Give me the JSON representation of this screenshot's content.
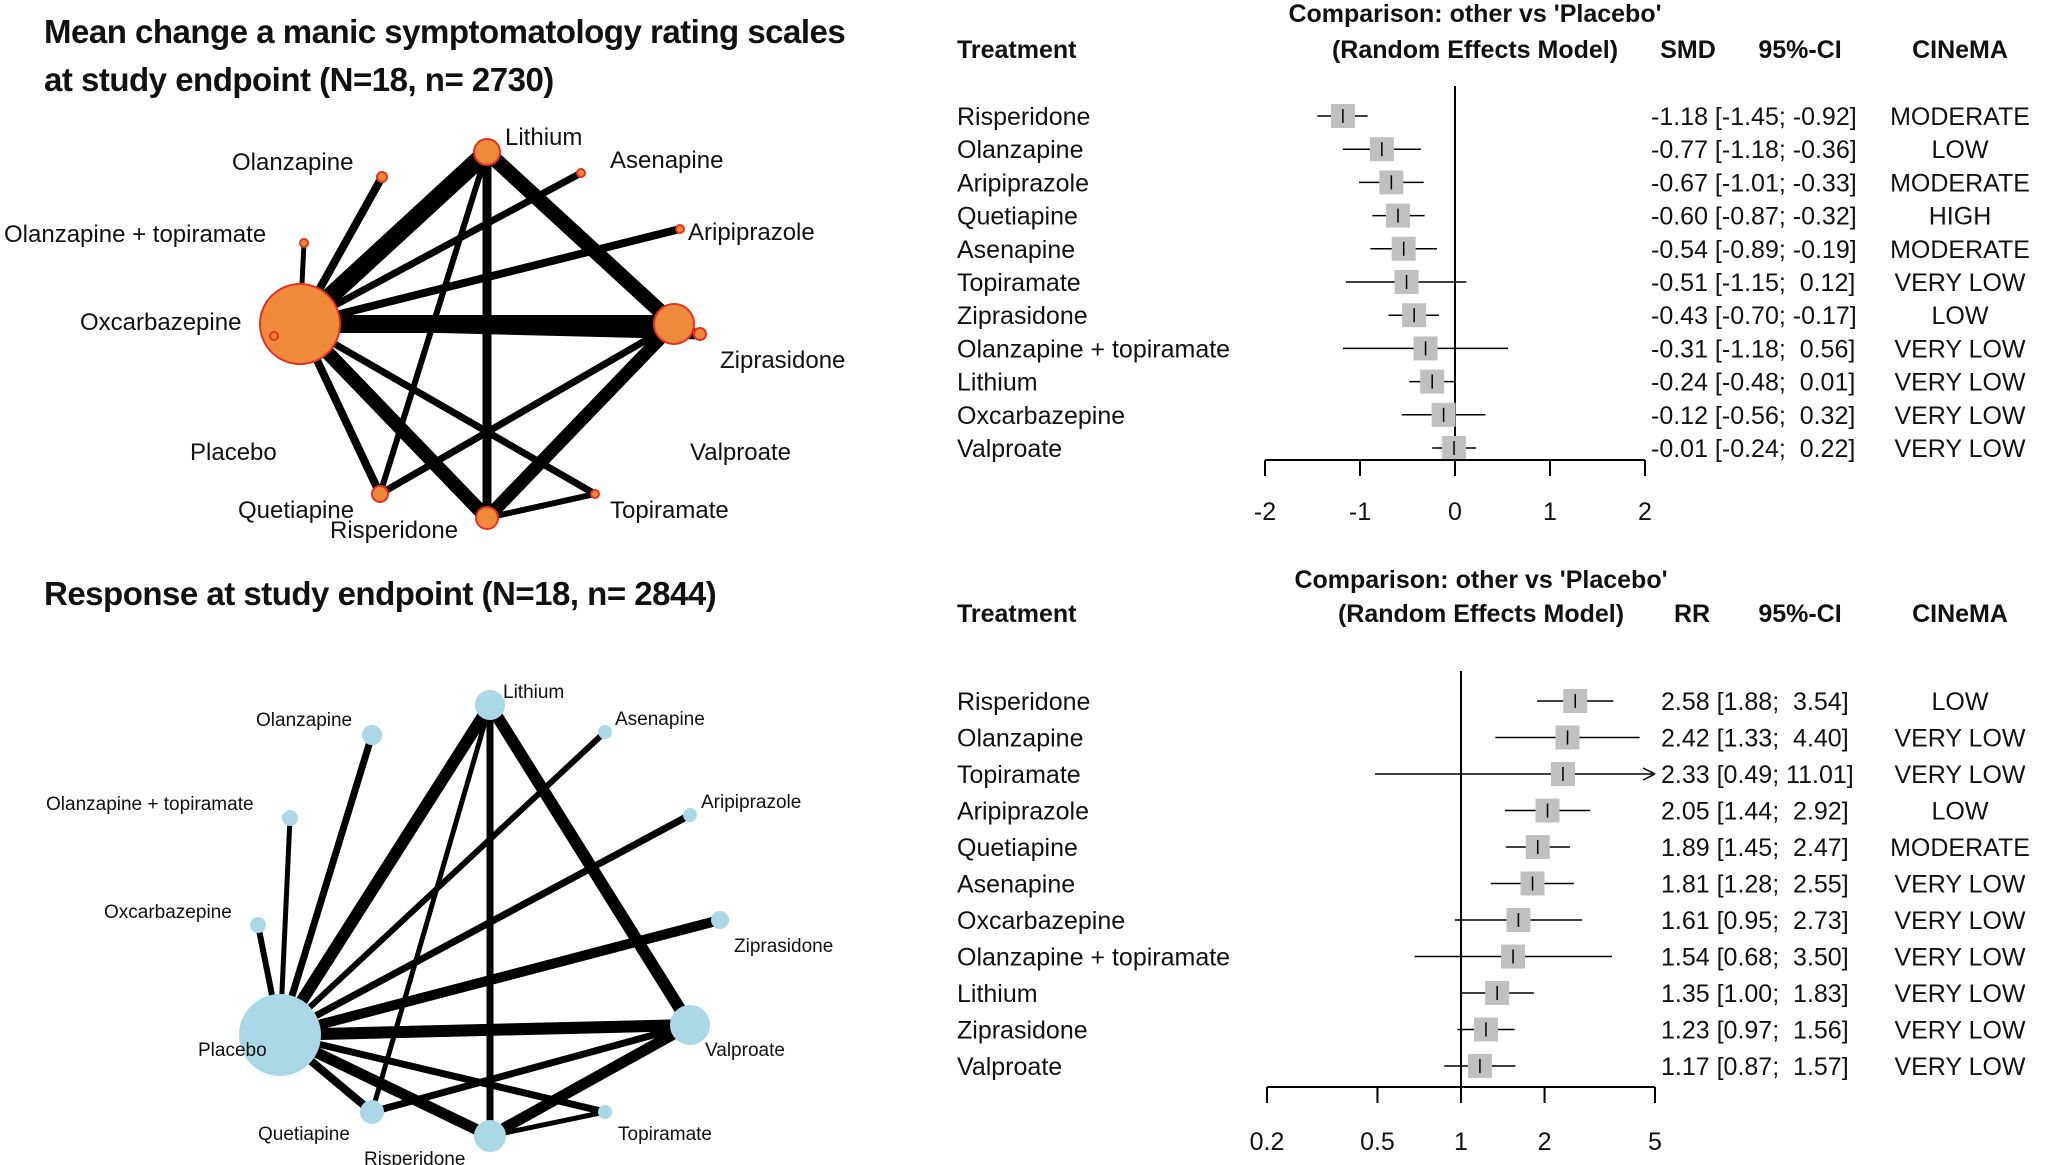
{
  "panels": [
    {
      "title_line1": "Mean change a manic symptomatology rating scales",
      "title_line2": "at study endpoint (N=18, n= 2730)",
      "network": {
        "node_fill": "#ef8a3a",
        "node_stroke": "#e8301e",
        "nodes": [
          {
            "id": "placebo",
            "label": "Placebo"
          },
          {
            "id": "lithium",
            "label": "Lithium"
          },
          {
            "id": "valproate",
            "label": "Valproate"
          },
          {
            "id": "risperidone",
            "label": "Risperidone"
          },
          {
            "id": "quetiapine",
            "label": "Quetiapine"
          },
          {
            "id": "topiramate",
            "label": "Topiramate"
          },
          {
            "id": "ziprasidone",
            "label": "Ziprasidone"
          },
          {
            "id": "aripiprazole",
            "label": "Aripiprazole"
          },
          {
            "id": "asenapine",
            "label": "Asenapine"
          },
          {
            "id": "olanzapine",
            "label": "Olanzapine"
          },
          {
            "id": "olz_top",
            "label": "Olanzapine + topiramate"
          },
          {
            "id": "oxcarbazepine",
            "label": "Oxcarbazepine"
          }
        ]
      },
      "chart_data": {
        "type": "forest",
        "header": {
          "subtitle_line1": "Comparison: other vs 'Placebo'",
          "subtitle_line2": "(Random Effects Model)",
          "treatment": "Treatment",
          "measure": "SMD",
          "ci": "95%-CI",
          "cinema": "CINeMA"
        },
        "scale": "linear",
        "xlim": [
          -2,
          2
        ],
        "ticks": [
          -2,
          -1,
          0,
          1,
          2
        ],
        "tick_labels": [
          "-2",
          "-1",
          "0",
          "1",
          "2"
        ],
        "null_value": 0,
        "rows": [
          {
            "treatment": "Risperidone",
            "est": -1.18,
            "lo": -1.45,
            "hi": -0.92,
            "text": "-1.18 [-1.45; -0.92]",
            "cinema": "MODERATE"
          },
          {
            "treatment": "Olanzapine",
            "est": -0.77,
            "lo": -1.18,
            "hi": -0.36,
            "text": "-0.77 [-1.18; -0.36]",
            "cinema": "LOW"
          },
          {
            "treatment": "Aripiprazole",
            "est": -0.67,
            "lo": -1.01,
            "hi": -0.33,
            "text": "-0.67 [-1.01; -0.33]",
            "cinema": "MODERATE"
          },
          {
            "treatment": "Quetiapine",
            "est": -0.6,
            "lo": -0.87,
            "hi": -0.32,
            "text": "-0.60 [-0.87; -0.32]",
            "cinema": "HIGH"
          },
          {
            "treatment": "Asenapine",
            "est": -0.54,
            "lo": -0.89,
            "hi": -0.19,
            "text": "-0.54 [-0.89; -0.19]",
            "cinema": "MODERATE"
          },
          {
            "treatment": "Topiramate",
            "est": -0.51,
            "lo": -1.15,
            "hi": 0.12,
            "text": "-0.51 [-1.15;  0.12]",
            "cinema": "VERY LOW"
          },
          {
            "treatment": "Ziprasidone",
            "est": -0.43,
            "lo": -0.7,
            "hi": -0.17,
            "text": "-0.43 [-0.70; -0.17]",
            "cinema": "LOW"
          },
          {
            "treatment": "Olanzapine + topiramate",
            "est": -0.31,
            "lo": -1.18,
            "hi": 0.56,
            "text": "-0.31 [-1.18;  0.56]",
            "cinema": "VERY LOW"
          },
          {
            "treatment": "Lithium",
            "est": -0.24,
            "lo": -0.48,
            "hi": 0.01,
            "text": "-0.24 [-0.48;  0.01]",
            "cinema": "VERY LOW"
          },
          {
            "treatment": "Oxcarbazepine",
            "est": -0.12,
            "lo": -0.56,
            "hi": 0.32,
            "text": "-0.12 [-0.56;  0.32]",
            "cinema": "VERY LOW"
          },
          {
            "treatment": "Valproate",
            "est": -0.01,
            "lo": -0.24,
            "hi": 0.22,
            "text": "-0.01 [-0.24;  0.22]",
            "cinema": "VERY LOW"
          }
        ]
      }
    },
    {
      "title_line1": "Response at study endpoint (N=18, n= 2844)",
      "title_line2": "",
      "network": {
        "node_fill": "#aad8e6",
        "node_stroke": "#aad8e6",
        "nodes": [
          {
            "id": "placebo",
            "label": "Placebo"
          },
          {
            "id": "lithium",
            "label": "Lithium"
          },
          {
            "id": "valproate",
            "label": "Valproate"
          },
          {
            "id": "risperidone",
            "label": "Risperidone"
          },
          {
            "id": "quetiapine",
            "label": "Quetiapine"
          },
          {
            "id": "topiramate",
            "label": "Topiramate"
          },
          {
            "id": "ziprasidone",
            "label": "Ziprasidone"
          },
          {
            "id": "aripiprazole",
            "label": "Aripiprazole"
          },
          {
            "id": "asenapine",
            "label": "Asenapine"
          },
          {
            "id": "olanzapine",
            "label": "Olanzapine"
          },
          {
            "id": "olz_top",
            "label": "Olanzapine + topiramate"
          },
          {
            "id": "oxcarbazepine",
            "label": "Oxcarbazepine"
          }
        ]
      },
      "chart_data": {
        "type": "forest",
        "header": {
          "subtitle_line1": "Comparison: other vs 'Placebo'",
          "subtitle_line2": "(Random Effects Model)",
          "treatment": "Treatment",
          "measure": "RR",
          "ci": "95%-CI",
          "cinema": "CINeMA"
        },
        "scale": "log",
        "xlim": [
          0.2,
          5
        ],
        "ticks": [
          0.2,
          0.5,
          1,
          2,
          5
        ],
        "tick_labels": [
          "0.2",
          "0.5",
          "1",
          "2",
          "5"
        ],
        "null_value": 1,
        "rows": [
          {
            "treatment": "Risperidone",
            "est": 2.58,
            "lo": 1.88,
            "hi": 3.54,
            "text": "2.58 [1.88;  3.54]",
            "cinema": "LOW"
          },
          {
            "treatment": "Olanzapine",
            "est": 2.42,
            "lo": 1.33,
            "hi": 4.4,
            "text": "2.42 [1.33;  4.40]",
            "cinema": "VERY LOW"
          },
          {
            "treatment": "Topiramate",
            "est": 2.33,
            "lo": 0.49,
            "hi": 11.01,
            "text": "2.33 [0.49; 11.01]",
            "cinema": "VERY LOW"
          },
          {
            "treatment": "Aripiprazole",
            "est": 2.05,
            "lo": 1.44,
            "hi": 2.92,
            "text": "2.05 [1.44;  2.92]",
            "cinema": "LOW"
          },
          {
            "treatment": "Quetiapine",
            "est": 1.89,
            "lo": 1.45,
            "hi": 2.47,
            "text": "1.89 [1.45;  2.47]",
            "cinema": "MODERATE"
          },
          {
            "treatment": "Asenapine",
            "est": 1.81,
            "lo": 1.28,
            "hi": 2.55,
            "text": "1.81 [1.28;  2.55]",
            "cinema": "VERY LOW"
          },
          {
            "treatment": "Oxcarbazepine",
            "est": 1.61,
            "lo": 0.95,
            "hi": 2.73,
            "text": "1.61 [0.95;  2.73]",
            "cinema": "VERY LOW"
          },
          {
            "treatment": "Olanzapine + topiramate",
            "est": 1.54,
            "lo": 0.68,
            "hi": 3.5,
            "text": "1.54 [0.68;  3.50]",
            "cinema": "VERY LOW"
          },
          {
            "treatment": "Lithium",
            "est": 1.35,
            "lo": 1.0,
            "hi": 1.83,
            "text": "1.35 [1.00;  1.83]",
            "cinema": "VERY LOW"
          },
          {
            "treatment": "Ziprasidone",
            "est": 1.23,
            "lo": 0.97,
            "hi": 1.56,
            "text": "1.23 [0.97;  1.56]",
            "cinema": "VERY LOW"
          },
          {
            "treatment": "Valproate",
            "est": 1.17,
            "lo": 0.87,
            "hi": 1.57,
            "text": "1.17 [0.87;  1.57]",
            "cinema": "VERY LOW"
          }
        ]
      }
    }
  ]
}
